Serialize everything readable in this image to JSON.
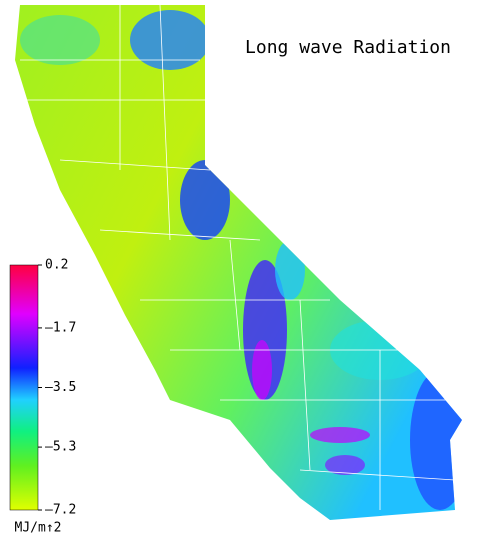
{
  "title": "Long wave Radiation",
  "colorbar": {
    "unit": "MJ/m↑2",
    "lim": [
      -7.2,
      0.2
    ],
    "ticks": [
      {
        "value": 0.2,
        "label": "0.2"
      },
      {
        "value": -1.7,
        "label": "–1.7"
      },
      {
        "value": -3.5,
        "label": "–3.5"
      },
      {
        "value": -5.3,
        "label": "–5.3"
      },
      {
        "value": -7.2,
        "label": "–7.2"
      }
    ]
  }
}
